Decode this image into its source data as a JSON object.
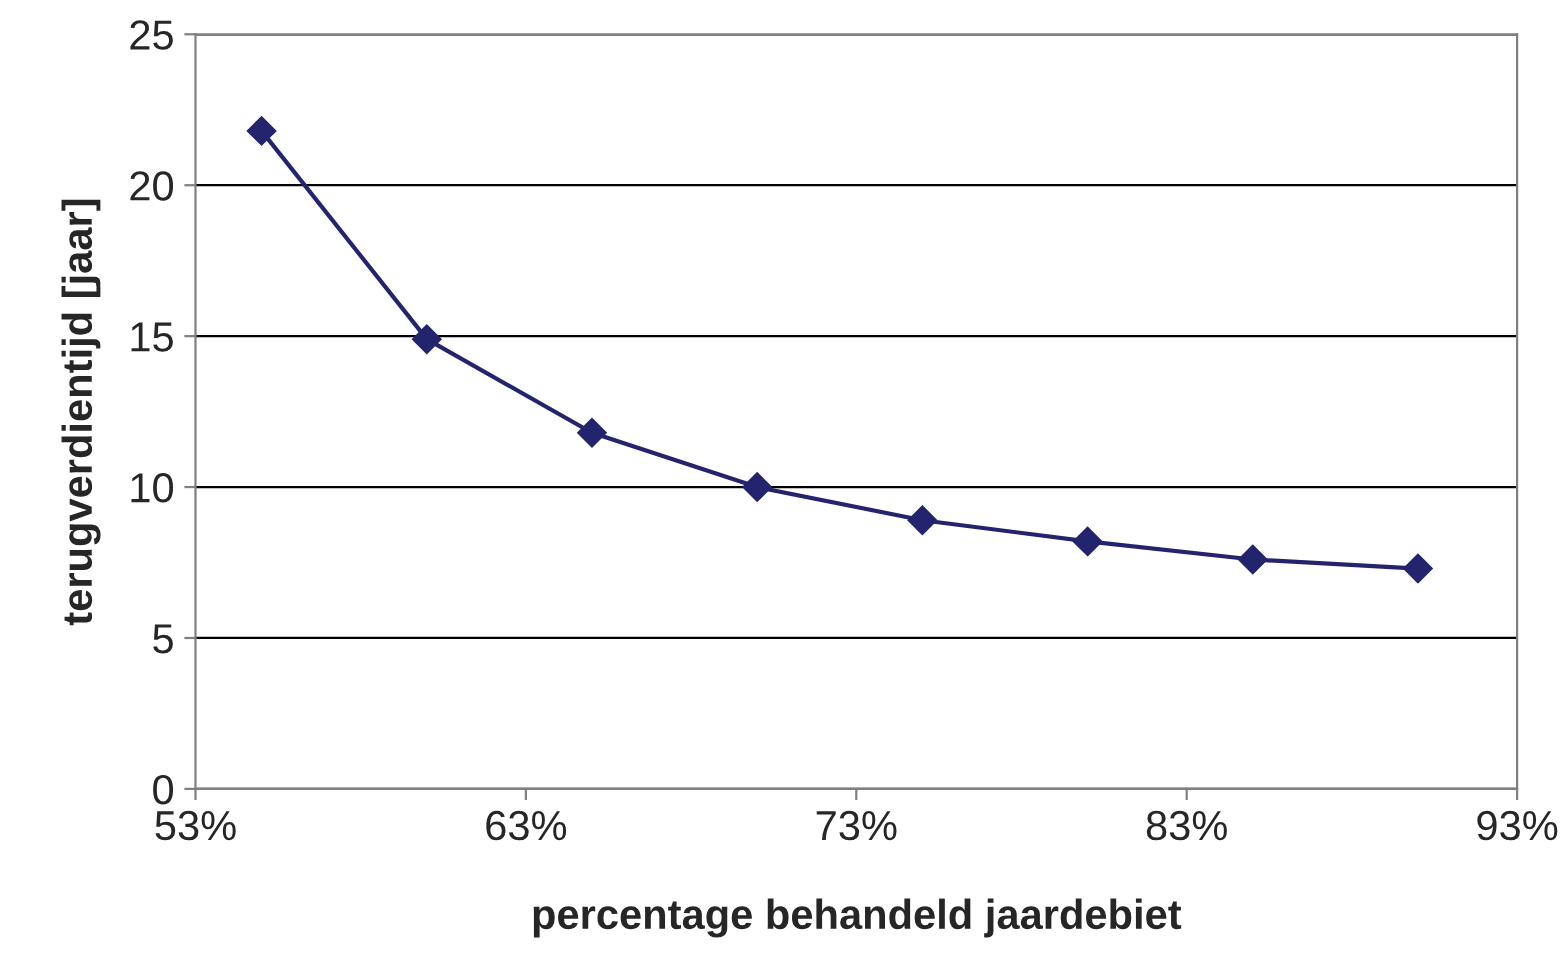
{
  "chart_data": {
    "type": "line",
    "xlabel": "percentage behandeld jaardebiet",
    "ylabel": "terugverdientijd [jaar]",
    "x": [
      55,
      60,
      65,
      70,
      75,
      80,
      85,
      90
    ],
    "series": [
      {
        "color": "#24246e",
        "values": [
          21.8,
          14.9,
          11.8,
          10.0,
          8.9,
          8.2,
          7.6,
          7.3
        ]
      }
    ],
    "xlim": [
      53,
      93
    ],
    "xticks": [
      {
        "value": 53,
        "label": "53%"
      },
      {
        "value": 63,
        "label": "63%"
      },
      {
        "value": 73,
        "label": "73%"
      },
      {
        "value": 83,
        "label": "83%"
      },
      {
        "value": 93,
        "label": "93%"
      }
    ],
    "ylim": [
      0,
      25
    ],
    "yticks": [
      0,
      5,
      10,
      15,
      20,
      25
    ],
    "grid": "y",
    "marker": "diamond",
    "line_style": "solid"
  }
}
